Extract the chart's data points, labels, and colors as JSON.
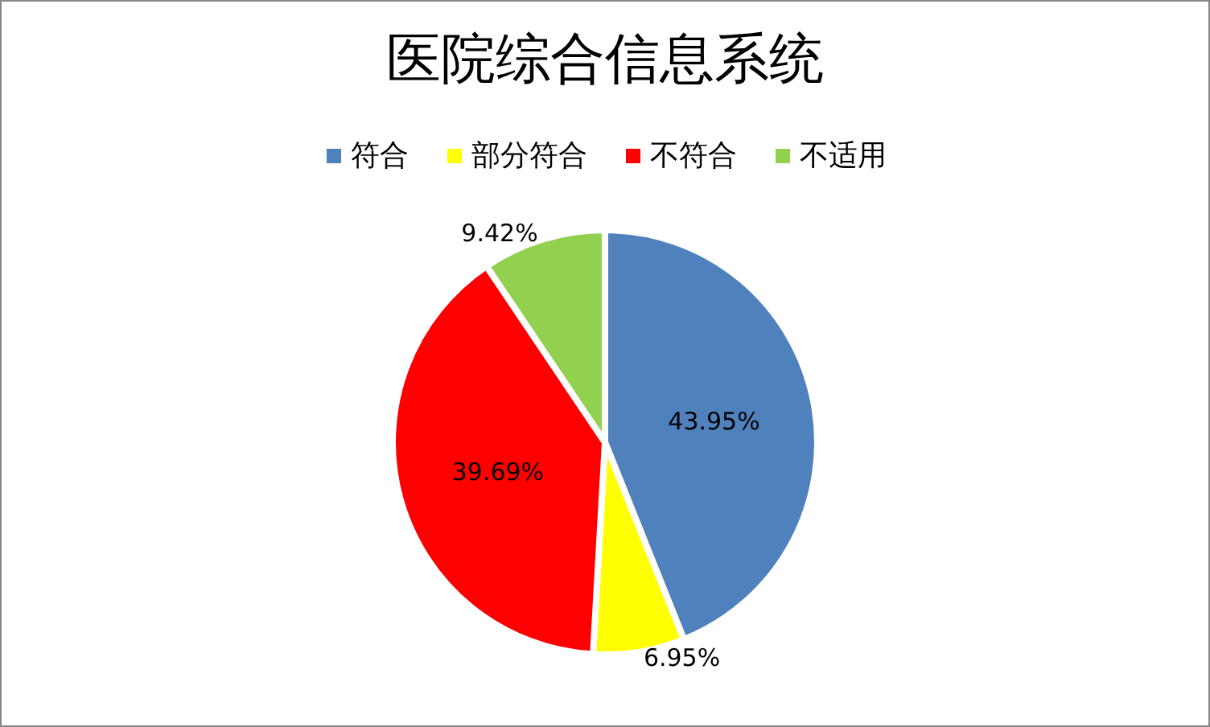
{
  "chart_data": {
    "type": "pie",
    "title": "医院综合信息系统",
    "categories": [
      "符合",
      "部分符合",
      "不符合",
      "不适用"
    ],
    "values": [
      43.95,
      6.95,
      39.69,
      9.42
    ],
    "colors": [
      "#4f81bd",
      "#ffff00",
      "#ff0000",
      "#92d050"
    ],
    "value_labels": [
      "43.95%",
      "6.95%",
      "39.69%",
      "9.42%"
    ],
    "legend": "top"
  }
}
